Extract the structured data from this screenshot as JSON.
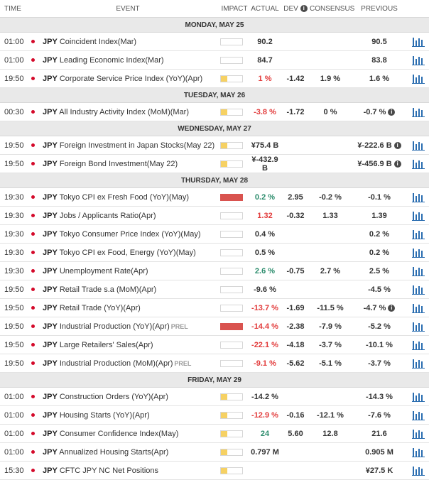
{
  "columns": {
    "time": "TIME",
    "event": "EVENT",
    "impact": "IMPACT",
    "actual": "ACTUAL",
    "dev": "DEV",
    "consensus": "CONSENSUS",
    "previous": "PREVIOUS"
  },
  "colors": {
    "negative": "#e23b3b",
    "positive": "#2b8c6c",
    "flag": "#d4092a",
    "chart_icon": "#2a6db0"
  },
  "days": [
    {
      "label": "MONDAY, MAY 25",
      "events": [
        {
          "time": "01:00",
          "currency": "JPY",
          "name": "Coincident Index(Mar)",
          "tag": "",
          "impact": "medium",
          "actual": "90.2",
          "actual_tone": "neu",
          "dev": "",
          "consensus": "",
          "previous": "90.5",
          "prev_info": false
        },
        {
          "time": "01:00",
          "currency": "JPY",
          "name": "Leading Economic Index(Mar)",
          "tag": "",
          "impact": "medium",
          "actual": "84.7",
          "actual_tone": "neu",
          "dev": "",
          "consensus": "",
          "previous": "83.8",
          "prev_info": false
        },
        {
          "time": "19:50",
          "currency": "JPY",
          "name": "Corporate Service Price Index (YoY)(Apr)",
          "tag": "",
          "impact": "low",
          "actual": "1 %",
          "actual_tone": "neg",
          "dev": "-1.42",
          "consensus": "1.9 %",
          "previous": "1.6 %",
          "prev_info": false
        }
      ]
    },
    {
      "label": "TUESDAY, MAY 26",
      "events": [
        {
          "time": "00:30",
          "currency": "JPY",
          "name": "All Industry Activity Index (MoM)(Mar)",
          "tag": "",
          "impact": "low",
          "actual": "-3.8 %",
          "actual_tone": "neg",
          "dev": "-1.72",
          "consensus": "0 %",
          "previous": "-0.7 %",
          "prev_info": true
        }
      ]
    },
    {
      "label": "WEDNESDAY, MAY 27",
      "events": [
        {
          "time": "19:50",
          "currency": "JPY",
          "name": "Foreign Investment in Japan Stocks(May 22)",
          "tag": "",
          "impact": "low",
          "actual": "¥75.4 B",
          "actual_tone": "neu",
          "dev": "",
          "consensus": "",
          "previous": "¥-222.6 B",
          "prev_info": true
        },
        {
          "time": "19:50",
          "currency": "JPY",
          "name": "Foreign Bond Investment(May 22)",
          "tag": "",
          "impact": "low",
          "actual": "¥-432.9 B",
          "actual_tone": "neu",
          "dev": "",
          "consensus": "",
          "previous": "¥-456.9 B",
          "prev_info": true
        }
      ]
    },
    {
      "label": "THURSDAY, MAY 28",
      "events": [
        {
          "time": "19:30",
          "currency": "JPY",
          "name": "Tokyo CPI ex Fresh Food (YoY)(May)",
          "tag": "",
          "impact": "high",
          "actual": "0.2 %",
          "actual_tone": "pos",
          "dev": "2.95",
          "consensus": "-0.2 %",
          "previous": "-0.1 %",
          "prev_info": false
        },
        {
          "time": "19:30",
          "currency": "JPY",
          "name": "Jobs / Applicants Ratio(Apr)",
          "tag": "",
          "impact": "medium",
          "actual": "1.32",
          "actual_tone": "neg",
          "dev": "-0.32",
          "consensus": "1.33",
          "previous": "1.39",
          "prev_info": false
        },
        {
          "time": "19:30",
          "currency": "JPY",
          "name": "Tokyo Consumer Price Index (YoY)(May)",
          "tag": "",
          "impact": "medium",
          "actual": "0.4 %",
          "actual_tone": "neu",
          "dev": "",
          "consensus": "",
          "previous": "0.2 %",
          "prev_info": false
        },
        {
          "time": "19:30",
          "currency": "JPY",
          "name": "Tokyo CPI ex Food, Energy (YoY)(May)",
          "tag": "",
          "impact": "medium",
          "actual": "0.5 %",
          "actual_tone": "neu",
          "dev": "",
          "consensus": "",
          "previous": "0.2 %",
          "prev_info": false
        },
        {
          "time": "19:30",
          "currency": "JPY",
          "name": "Unemployment Rate(Apr)",
          "tag": "",
          "impact": "medium",
          "actual": "2.6 %",
          "actual_tone": "pos",
          "dev": "-0.75",
          "consensus": "2.7 %",
          "previous": "2.5 %",
          "prev_info": false
        },
        {
          "time": "19:50",
          "currency": "JPY",
          "name": "Retail Trade s.a (MoM)(Apr)",
          "tag": "",
          "impact": "medium",
          "actual": "-9.6 %",
          "actual_tone": "neu",
          "dev": "",
          "consensus": "",
          "previous": "-4.5 %",
          "prev_info": false
        },
        {
          "time": "19:50",
          "currency": "JPY",
          "name": "Retail Trade (YoY)(Apr)",
          "tag": "",
          "impact": "medium",
          "actual": "-13.7 %",
          "actual_tone": "neg",
          "dev": "-1.69",
          "consensus": "-11.5 %",
          "previous": "-4.7 %",
          "prev_info": true
        },
        {
          "time": "19:50",
          "currency": "JPY",
          "name": "Industrial Production (YoY)(Apr)",
          "tag": "PREL",
          "impact": "high",
          "actual": "-14.4 %",
          "actual_tone": "neg",
          "dev": "-2.38",
          "consensus": "-7.9 %",
          "previous": "-5.2 %",
          "prev_info": false
        },
        {
          "time": "19:50",
          "currency": "JPY",
          "name": "Large Retailers' Sales(Apr)",
          "tag": "",
          "impact": "medium",
          "actual": "-22.1 %",
          "actual_tone": "neg",
          "dev": "-4.18",
          "consensus": "-3.7 %",
          "previous": "-10.1 %",
          "prev_info": false
        },
        {
          "time": "19:50",
          "currency": "JPY",
          "name": "Industrial Production (MoM)(Apr)",
          "tag": "PREL",
          "impact": "medium",
          "actual": "-9.1 %",
          "actual_tone": "neg",
          "dev": "-5.62",
          "consensus": "-5.1 %",
          "previous": "-3.7 %",
          "prev_info": false
        }
      ]
    },
    {
      "label": "FRIDAY, MAY 29",
      "events": [
        {
          "time": "01:00",
          "currency": "JPY",
          "name": "Construction Orders (YoY)(Apr)",
          "tag": "",
          "impact": "low",
          "actual": "-14.2 %",
          "actual_tone": "neu",
          "dev": "",
          "consensus": "",
          "previous": "-14.3 %",
          "prev_info": false
        },
        {
          "time": "01:00",
          "currency": "JPY",
          "name": "Housing Starts (YoY)(Apr)",
          "tag": "",
          "impact": "low",
          "actual": "-12.9 %",
          "actual_tone": "neg",
          "dev": "-0.16",
          "consensus": "-12.1 %",
          "previous": "-7.6 %",
          "prev_info": false
        },
        {
          "time": "01:00",
          "currency": "JPY",
          "name": "Consumer Confidence Index(May)",
          "tag": "",
          "impact": "low",
          "actual": "24",
          "actual_tone": "pos",
          "dev": "5.60",
          "consensus": "12.8",
          "previous": "21.6",
          "prev_info": false
        },
        {
          "time": "01:00",
          "currency": "JPY",
          "name": "Annualized Housing Starts(Apr)",
          "tag": "",
          "impact": "low",
          "actual": "0.797 M",
          "actual_tone": "neu",
          "dev": "",
          "consensus": "",
          "previous": "0.905 M",
          "prev_info": false
        },
        {
          "time": "15:30",
          "currency": "JPY",
          "name": "CFTC JPY NC Net Positions",
          "tag": "",
          "impact": "low",
          "actual": "",
          "actual_tone": "neu",
          "dev": "",
          "consensus": "",
          "previous": "¥27.5 K",
          "prev_info": false
        }
      ]
    }
  ]
}
